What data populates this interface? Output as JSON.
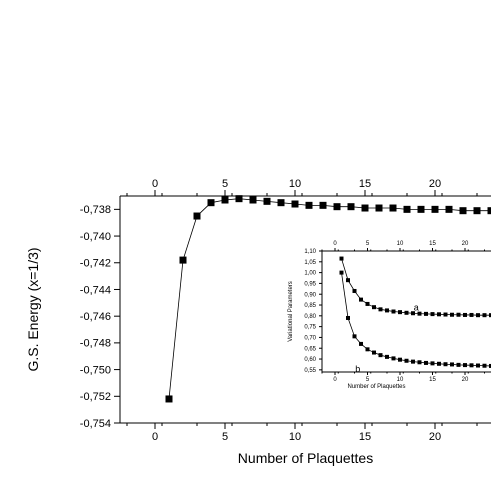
{
  "chart_data": [
    {
      "type": "scatter",
      "xlabel": "Number of Plaquettes",
      "ylabel": "G.S. Energy (x=1/3)",
      "xlim": [
        -2.5,
        24
      ],
      "ylim": [
        -0.754,
        -0.737
      ],
      "xticks": [
        0,
        5,
        10,
        15,
        20
      ],
      "xtick_labels": [
        "0",
        "5",
        "10",
        "15",
        "20"
      ],
      "yticks": [
        -0.754,
        -0.752,
        -0.75,
        -0.748,
        -0.746,
        -0.744,
        -0.742,
        -0.74,
        -0.738
      ],
      "ytick_labels": [
        "-0,754",
        "-0,752",
        "-0,750",
        "-0,748",
        "-0,746",
        "-0,744",
        "-0,742",
        "-0,740",
        "-0,738"
      ],
      "top_axis_ticks": [
        "0",
        "5",
        "10",
        "15",
        "20"
      ],
      "grid": false,
      "series": [
        {
          "x": [
            1,
            2,
            3,
            4,
            5,
            6,
            7,
            8,
            9,
            10,
            11,
            12,
            13,
            14,
            15,
            16,
            17,
            18,
            19,
            20,
            21,
            22,
            23,
            24
          ],
          "values": [
            -0.7522,
            -0.7418,
            -0.7385,
            -0.7375,
            -0.7373,
            -0.7372,
            -0.7373,
            -0.7374,
            -0.7375,
            -0.7376,
            -0.7377,
            -0.7377,
            -0.7378,
            -0.7378,
            -0.7379,
            -0.7379,
            -0.7379,
            -0.738,
            -0.738,
            -0.738,
            -0.738,
            -0.7381,
            -0.7381,
            -0.7381
          ]
        }
      ]
    },
    {
      "type": "scatter",
      "xlabel": "Number of Plaquettes",
      "ylabel": "Variational Parameters",
      "xlim": [
        -2,
        24
      ],
      "ylim": [
        0.54,
        1.1
      ],
      "xticks": [
        0,
        5,
        10,
        15,
        20
      ],
      "xtick_labels": [
        "0",
        "5",
        "10",
        "15",
        "20"
      ],
      "yticks": [
        0.55,
        0.6,
        0.65,
        0.7,
        0.75,
        0.8,
        0.85,
        0.9,
        0.95,
        1.0,
        1.05,
        1.1
      ],
      "ytick_labels": [
        "0,55",
        "0,60",
        "0,65",
        "0,70",
        "0,75",
        "0,80",
        "0,85",
        "0,90",
        "0,95",
        "1,00",
        "1,05",
        "1,10"
      ],
      "top_axis_ticks": [
        "0",
        "5",
        "10",
        "15",
        "20"
      ],
      "series": [
        {
          "name": "a",
          "x": [
            1,
            2,
            3,
            4,
            5,
            6,
            7,
            8,
            9,
            10,
            11,
            12,
            13,
            14,
            15,
            16,
            17,
            18,
            19,
            20,
            21,
            22,
            23,
            24
          ],
          "values": [
            1.065,
            0.965,
            0.915,
            0.875,
            0.855,
            0.84,
            0.83,
            0.825,
            0.82,
            0.817,
            0.814,
            0.812,
            0.81,
            0.809,
            0.808,
            0.807,
            0.806,
            0.805,
            0.805,
            0.804,
            0.804,
            0.803,
            0.803,
            0.803
          ]
        },
        {
          "name": "b",
          "x": [
            1,
            2,
            3,
            4,
            5,
            6,
            7,
            8,
            9,
            10,
            11,
            12,
            13,
            14,
            15,
            16,
            17,
            18,
            19,
            20,
            21,
            22,
            23,
            24
          ],
          "values": [
            1.0,
            0.79,
            0.705,
            0.67,
            0.645,
            0.63,
            0.618,
            0.61,
            0.603,
            0.597,
            0.592,
            0.588,
            0.585,
            0.582,
            0.58,
            0.578,
            0.576,
            0.575,
            0.573,
            0.572,
            0.571,
            0.57,
            0.569,
            0.568
          ]
        }
      ]
    }
  ]
}
